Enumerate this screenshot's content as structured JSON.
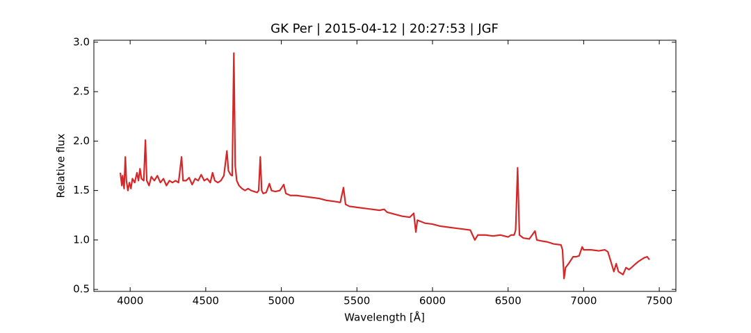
{
  "chart_data": {
    "type": "line",
    "title": "GK Per | 2015-04-12 | 20:27:53 | JGF",
    "x_label": "Wavelength [Å]",
    "y_label": "Relative flux",
    "xlim": [
      3760,
      7610
    ],
    "ylim": [
      0.48,
      3.02
    ],
    "xticks": [
      4000,
      4500,
      5000,
      5500,
      6000,
      6500,
      7000,
      7500
    ],
    "yticks": [
      0.5,
      {
        "value": 1.0,
        "label": "1.0"
      },
      1.5,
      {
        "value": 2.0,
        "label": "2.0"
      },
      2.5,
      {
        "value": 3.0,
        "label": "3.0"
      }
    ],
    "series": [
      {
        "color": "#d62728",
        "x": [
          3935,
          3945,
          3950,
          3960,
          3968,
          3975,
          3985,
          3995,
          4005,
          4015,
          4030,
          4045,
          4055,
          4065,
          4075,
          4090,
          4101,
          4110,
          4125,
          4140,
          4160,
          4180,
          4200,
          4220,
          4240,
          4260,
          4280,
          4300,
          4320,
          4340,
          4350,
          4370,
          4390,
          4410,
          4430,
          4450,
          4470,
          4490,
          4510,
          4530,
          4545,
          4560,
          4580,
          4600,
          4620,
          4640,
          4650,
          4665,
          4675,
          4686,
          4695,
          4705,
          4720,
          4740,
          4760,
          4780,
          4800,
          4820,
          4840,
          4850,
          4861,
          4870,
          4880,
          4900,
          4921,
          4935,
          4960,
          4990,
          5016,
          5030,
          5060,
          5100,
          5150,
          5200,
          5250,
          5300,
          5350,
          5390,
          5411,
          5425,
          5450,
          5500,
          5550,
          5600,
          5650,
          5680,
          5700,
          5750,
          5800,
          5850,
          5876,
          5890,
          5900,
          5950,
          6000,
          6050,
          6100,
          6150,
          6200,
          6250,
          6280,
          6300,
          6350,
          6400,
          6450,
          6500,
          6520,
          6540,
          6550,
          6563,
          6575,
          6600,
          6640,
          6678,
          6690,
          6720,
          6760,
          6800,
          6850,
          6860,
          6870,
          6880,
          6900,
          6930,
          6950,
          6970,
          6990,
          7000,
          7050,
          7100,
          7140,
          7160,
          7180,
          7200,
          7215,
          7230,
          7260,
          7280,
          7300,
          7330,
          7360,
          7400,
          7420,
          7435
        ],
        "values": [
          1.68,
          1.55,
          1.65,
          1.52,
          1.84,
          1.6,
          1.5,
          1.58,
          1.52,
          1.62,
          1.58,
          1.68,
          1.6,
          1.72,
          1.62,
          1.6,
          2.01,
          1.6,
          1.55,
          1.64,
          1.6,
          1.65,
          1.58,
          1.62,
          1.55,
          1.6,
          1.58,
          1.6,
          1.58,
          1.84,
          1.6,
          1.6,
          1.63,
          1.56,
          1.62,
          1.6,
          1.66,
          1.6,
          1.62,
          1.58,
          1.68,
          1.6,
          1.58,
          1.6,
          1.65,
          1.9,
          1.7,
          1.66,
          1.65,
          2.89,
          1.75,
          1.6,
          1.55,
          1.52,
          1.5,
          1.52,
          1.5,
          1.49,
          1.48,
          1.5,
          1.84,
          1.5,
          1.47,
          1.48,
          1.57,
          1.5,
          1.49,
          1.5,
          1.56,
          1.47,
          1.45,
          1.45,
          1.44,
          1.43,
          1.42,
          1.4,
          1.39,
          1.38,
          1.53,
          1.36,
          1.34,
          1.33,
          1.32,
          1.31,
          1.3,
          1.31,
          1.28,
          1.26,
          1.24,
          1.23,
          1.27,
          1.08,
          1.2,
          1.17,
          1.16,
          1.14,
          1.13,
          1.12,
          1.11,
          1.1,
          1.0,
          1.05,
          1.05,
          1.04,
          1.05,
          1.03,
          1.05,
          1.05,
          1.1,
          1.73,
          1.05,
          1.02,
          1.01,
          1.09,
          1.0,
          0.99,
          0.98,
          0.96,
          0.95,
          0.9,
          0.61,
          0.72,
          0.76,
          0.83,
          0.83,
          0.84,
          0.93,
          0.9,
          0.9,
          0.89,
          0.9,
          0.88,
          0.78,
          0.68,
          0.76,
          0.68,
          0.65,
          0.72,
          0.7,
          0.74,
          0.78,
          0.82,
          0.83,
          0.8
        ]
      }
    ]
  }
}
